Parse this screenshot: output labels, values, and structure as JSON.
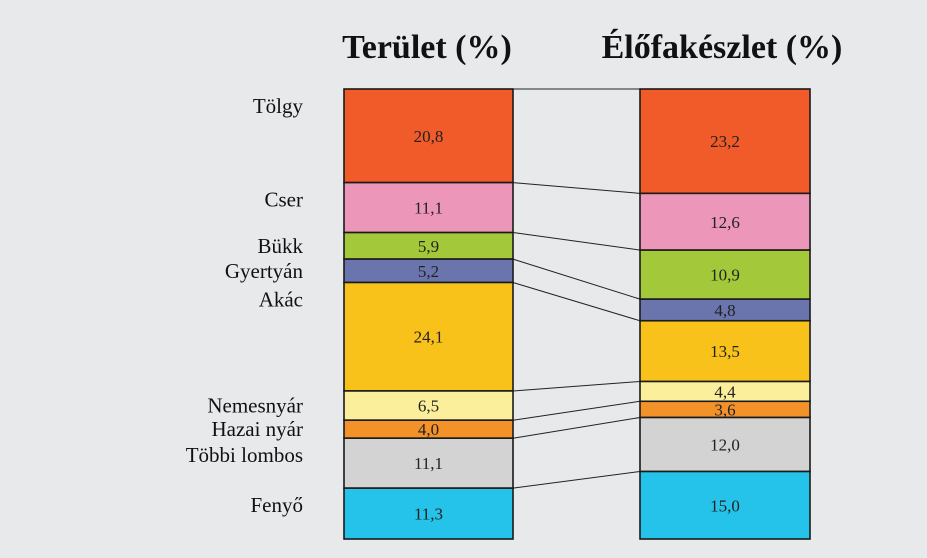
{
  "chart_data": {
    "type": "bar",
    "subtype": "stacked-100-percent-columns",
    "categories": [
      "Tölgy",
      "Cser",
      "Bükk",
      "Gyertyán",
      "Akác",
      "Nemesnyár",
      "Hazai nyár",
      "Többi lombos",
      "Fenyő"
    ],
    "colors": [
      "#f15a29",
      "#ec97ba",
      "#a3c93a",
      "#6a74ad",
      "#f8c21b",
      "#fcef9c",
      "#f4922a",
      "#d3d3d3",
      "#25c2e9"
    ],
    "series": [
      {
        "name": "Terület (%)",
        "values": [
          "20,8",
          "11,1",
          "5,9",
          "5,2",
          "24,1",
          "6,5",
          "4,0",
          "11,1",
          "11,3"
        ]
      },
      {
        "name": "Élőfakészlet (%)",
        "values": [
          "23,2",
          "12,6",
          "10,9",
          "4,8",
          "13,5",
          "4,4",
          "3,6",
          "12,0",
          "15,0"
        ]
      }
    ],
    "ylim": [
      0,
      100
    ],
    "legend": "category labels left of first column",
    "connector_lines": true
  }
}
